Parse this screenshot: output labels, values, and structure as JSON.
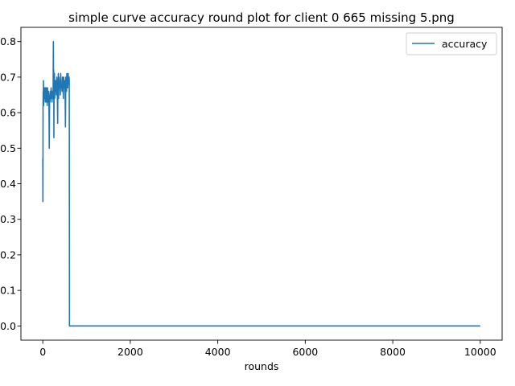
{
  "chart_data": {
    "type": "line",
    "title": "simple curve accuracy round plot for client 0 665 missing 5.png",
    "xlabel": "rounds",
    "ylabel": "",
    "xlim": [
      -500,
      10500
    ],
    "ylim": [
      -0.04,
      0.84
    ],
    "xticks": [
      0,
      2000,
      4000,
      6000,
      8000,
      10000
    ],
    "xtick_labels": [
      "0",
      "2000",
      "4000",
      "6000",
      "8000",
      "10000"
    ],
    "yticks": [
      0.0,
      0.1,
      0.2,
      0.3,
      0.4,
      0.5,
      0.6,
      0.7,
      0.8
    ],
    "ytick_labels": [
      "0.0",
      "0.1",
      "0.2",
      "0.3",
      "0.4",
      "0.5",
      "0.6",
      "0.7",
      "0.8"
    ],
    "grid": false,
    "legend_position": "top-right",
    "line_color": "#1f77b4",
    "series": [
      {
        "name": "accuracy",
        "x": [
          0,
          3,
          6,
          9,
          12,
          15,
          18,
          22,
          26,
          30,
          35,
          40,
          45,
          50,
          55,
          60,
          65,
          70,
          75,
          80,
          85,
          90,
          95,
          100,
          108,
          116,
          124,
          132,
          140,
          148,
          156,
          164,
          172,
          180,
          190,
          200,
          210,
          220,
          228,
          236,
          242,
          246,
          250,
          254,
          258,
          262,
          266,
          272,
          278,
          284,
          290,
          300,
          310,
          320,
          330,
          340,
          345,
          350,
          355,
          360,
          370,
          380,
          390,
          400,
          410,
          420,
          430,
          440,
          450,
          460,
          470,
          480,
          490,
          500,
          510,
          518,
          526,
          534,
          542,
          550,
          560,
          570,
          580,
          590,
          600,
          605,
          610,
          620,
          640,
          700,
          1000,
          2000,
          4000,
          6000,
          8000,
          10000
        ],
        "y": [
          0.47,
          0.35,
          0.62,
          0.66,
          0.64,
          0.69,
          0.62,
          0.67,
          0.64,
          0.66,
          0.65,
          0.67,
          0.64,
          0.66,
          0.63,
          0.67,
          0.64,
          0.66,
          0.65,
          0.63,
          0.67,
          0.64,
          0.66,
          0.62,
          0.67,
          0.65,
          0.63,
          0.66,
          0.64,
          0.5,
          0.65,
          0.63,
          0.66,
          0.64,
          0.67,
          0.65,
          0.63,
          0.66,
          0.64,
          0.66,
          0.8,
          0.67,
          0.72,
          0.53,
          0.69,
          0.66,
          0.71,
          0.64,
          0.68,
          0.66,
          0.69,
          0.67,
          0.65,
          0.7,
          0.68,
          0.57,
          0.69,
          0.66,
          0.71,
          0.64,
          0.7,
          0.67,
          0.69,
          0.65,
          0.71,
          0.67,
          0.68,
          0.66,
          0.7,
          0.68,
          0.64,
          0.7,
          0.67,
          0.69,
          0.66,
          0.56,
          0.7,
          0.68,
          0.66,
          0.71,
          0.69,
          0.67,
          0.71,
          0.68,
          0.7,
          0.69,
          0.0,
          0.0,
          0.0,
          0.0,
          0.0,
          0.0,
          0.0,
          0.0,
          0.0,
          0.0
        ]
      }
    ]
  }
}
